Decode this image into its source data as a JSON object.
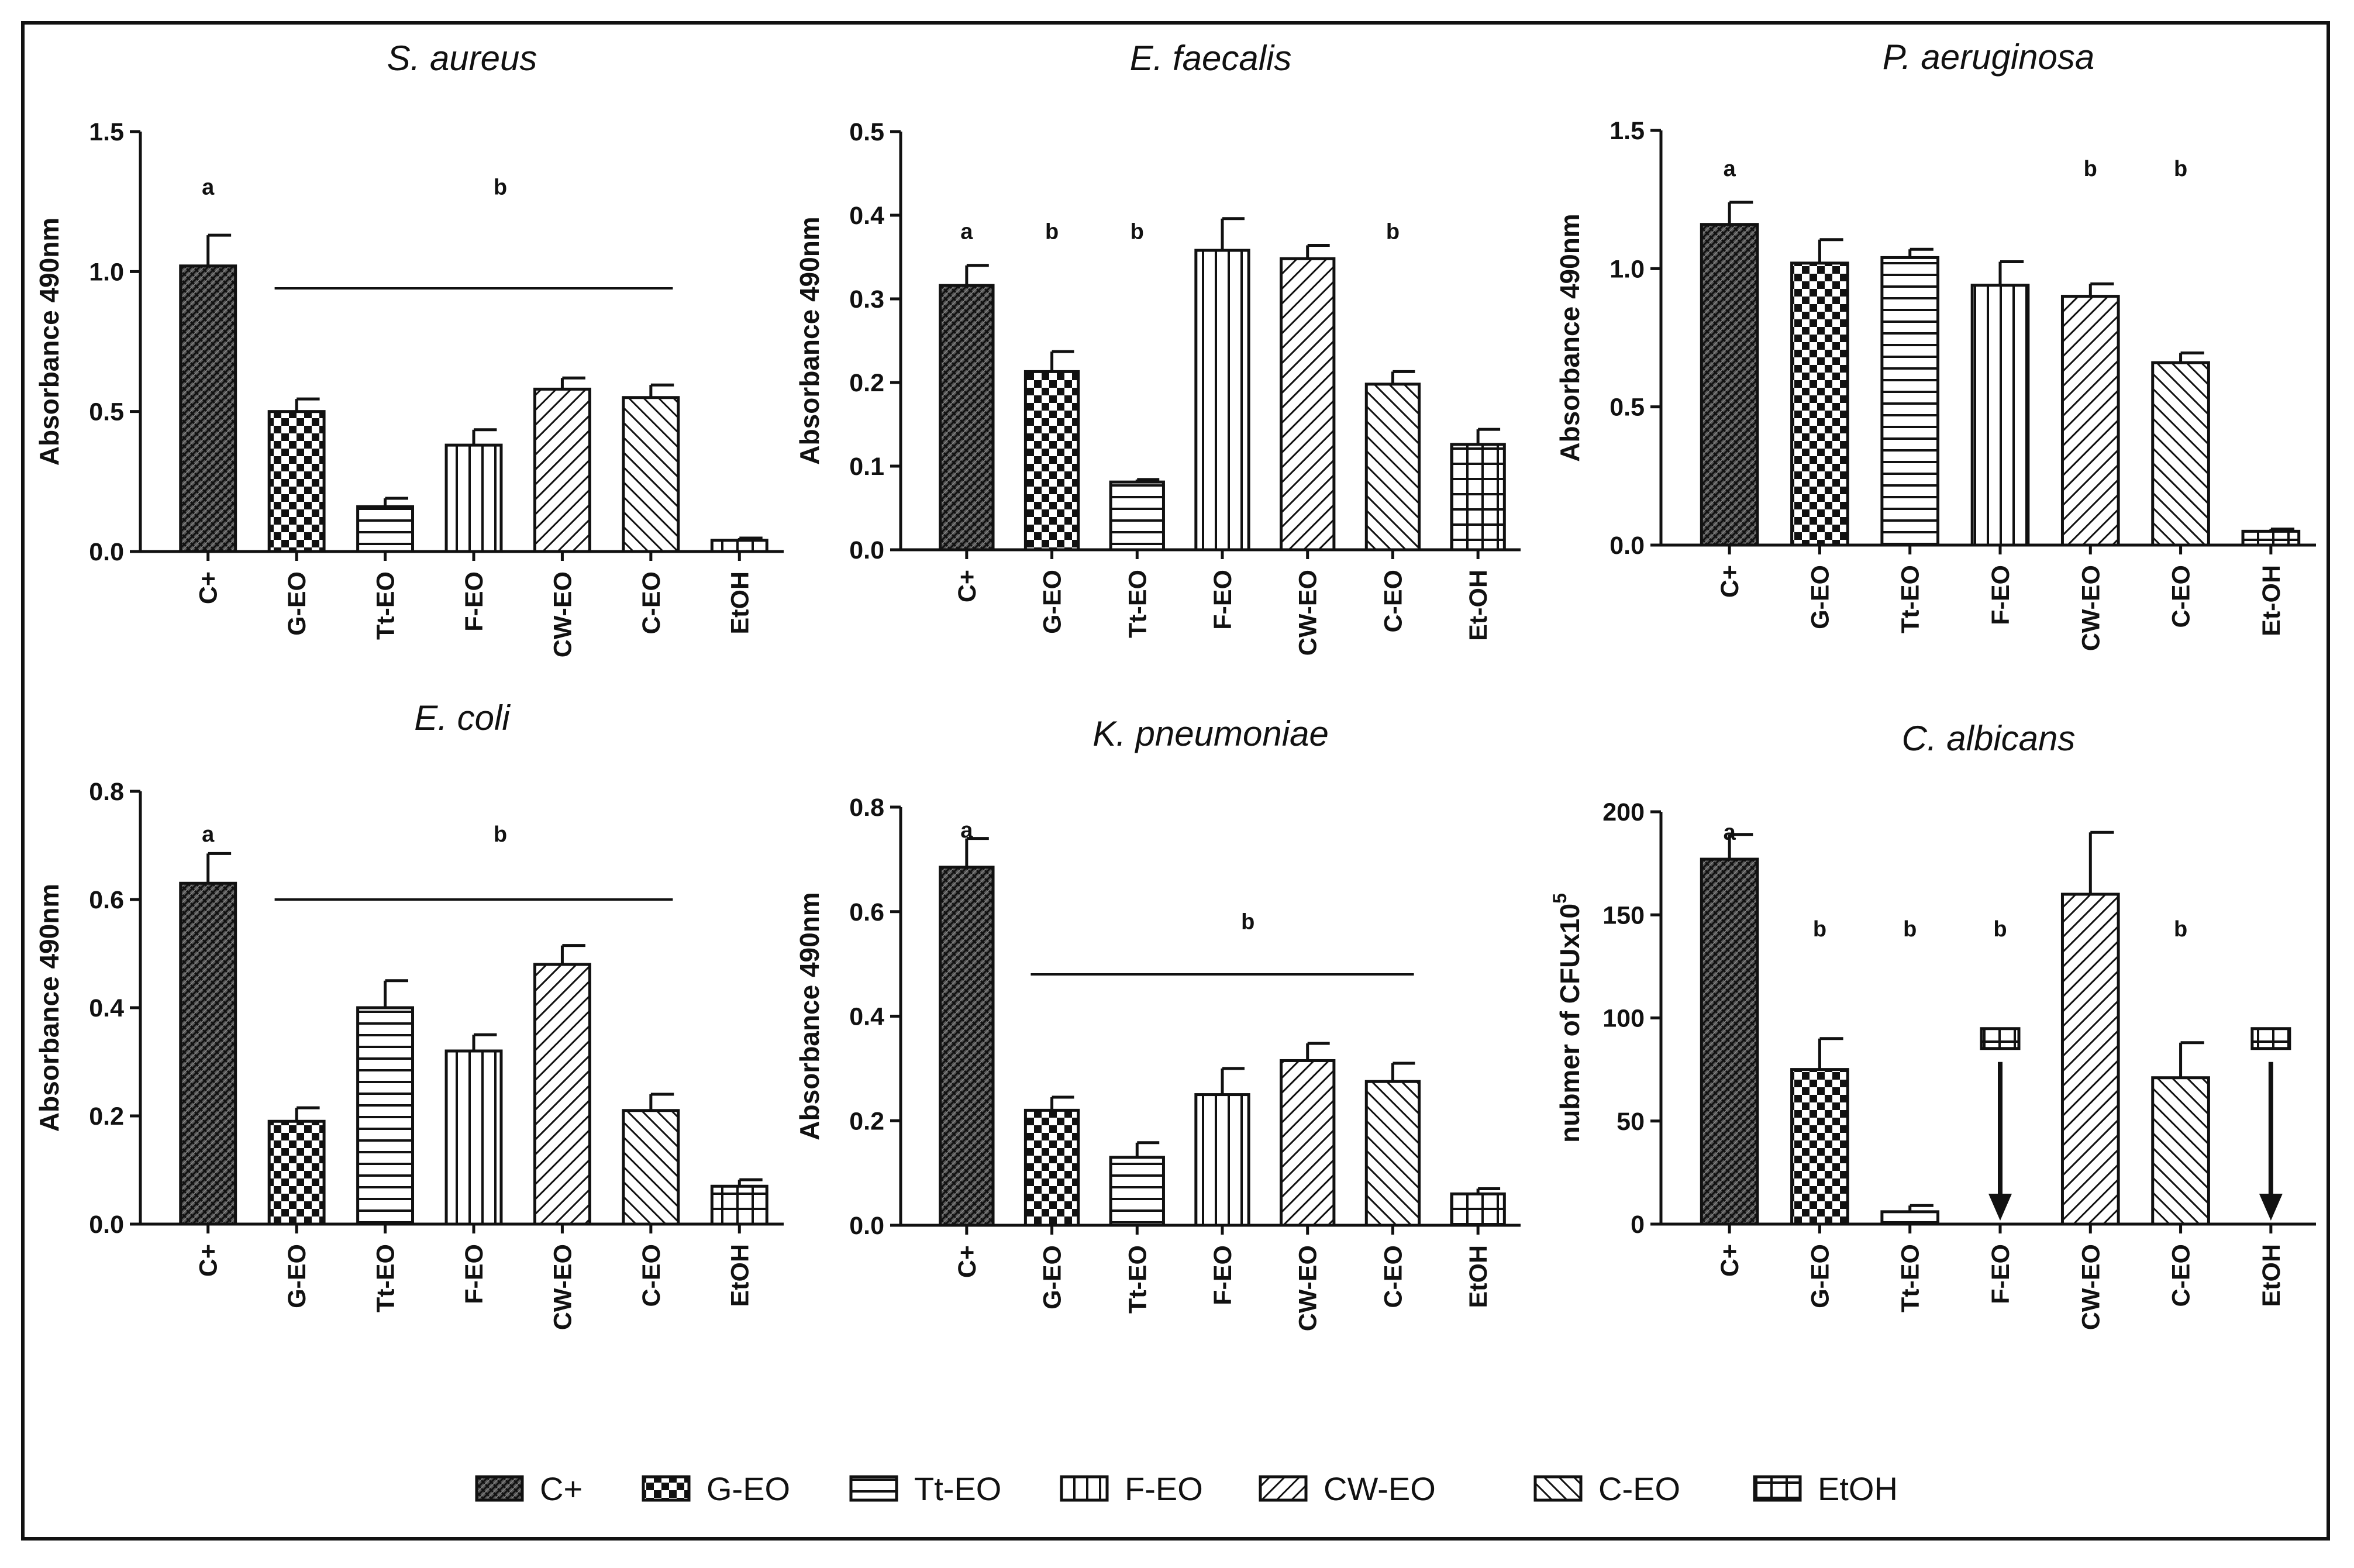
{
  "chart_data": [
    {
      "type": "bar",
      "title": "S. aureus",
      "ylabel": "Absorbance 490nm",
      "ylim": [
        0,
        1.5
      ],
      "yticks": [
        "0.0",
        "0.5",
        "1.0",
        "1.5"
      ],
      "categories": [
        "C+",
        "G-EO",
        "Tt-EO",
        "F-EO",
        "CW-EO",
        "C-EO",
        "EtOH"
      ],
      "values": [
        1.02,
        0.5,
        0.16,
        0.38,
        0.58,
        0.55,
        0.04
      ],
      "errors": [
        0.11,
        0.045,
        0.03,
        0.055,
        0.04,
        0.045,
        0.008
      ],
      "annotations": [
        {
          "label": "a",
          "at": 0,
          "y": 1.3
        },
        {
          "label": "b",
          "at": 3.3,
          "y": 1.3
        }
      ],
      "bracket": {
        "from": 1,
        "to": 5,
        "y": 0.94
      }
    },
    {
      "type": "bar",
      "title": "E. faecalis",
      "ylabel": "Absorbance 490nm",
      "ylim": [
        0,
        0.5
      ],
      "yticks": [
        "0.0",
        "0.1",
        "0.2",
        "0.3",
        "0.4",
        "0.5"
      ],
      "categories": [
        "C+",
        "G-EO",
        "Tt-EO",
        "F-EO",
        "CW-EO",
        "C-EO",
        "Et-OH"
      ],
      "values": [
        0.316,
        0.213,
        0.081,
        0.358,
        0.348,
        0.198,
        0.126
      ],
      "errors": [
        0.024,
        0.024,
        0.003,
        0.038,
        0.016,
        0.015,
        0.018
      ],
      "annotations": [
        {
          "label": "a",
          "at": 0,
          "y": 0.38
        },
        {
          "label": "b",
          "at": 1,
          "y": 0.38
        },
        {
          "label": "b",
          "at": 2,
          "y": 0.38
        },
        {
          "label": "b",
          "at": 5,
          "y": 0.38
        }
      ],
      "bracket": null
    },
    {
      "type": "bar",
      "title": "P. aeruginosa",
      "ylabel": "Absorbance 490nm",
      "ylim": [
        0,
        1.5
      ],
      "yticks": [
        "0.0",
        "0.5",
        "1.0",
        "1.5"
      ],
      "categories": [
        "C+",
        "G-EO",
        "Tt-EO",
        "F-EO",
        "CW-EO",
        "C-EO",
        "Et-OH"
      ],
      "values": [
        1.16,
        1.02,
        1.04,
        0.94,
        0.9,
        0.66,
        0.05
      ],
      "errors": [
        0.08,
        0.085,
        0.03,
        0.085,
        0.045,
        0.035,
        0.008
      ],
      "annotations": [
        {
          "label": "a",
          "at": 0,
          "y": 1.36
        },
        {
          "label": "b",
          "at": 4,
          "y": 1.36
        },
        {
          "label": "b",
          "at": 5,
          "y": 1.36
        }
      ],
      "bracket": null
    },
    {
      "type": "bar",
      "title": "E. coli",
      "ylabel": "Absorbance 490nm",
      "ylim": [
        0,
        0.8
      ],
      "yticks": [
        "0.0",
        "0.2",
        "0.4",
        "0.6",
        "0.8"
      ],
      "categories": [
        "C+",
        "G-EO",
        "Tt-EO",
        "F-EO",
        "CW-EO",
        "C-EO",
        "EtOH"
      ],
      "values": [
        0.63,
        0.19,
        0.4,
        0.32,
        0.48,
        0.21,
        0.07
      ],
      "errors": [
        0.055,
        0.025,
        0.05,
        0.03,
        0.035,
        0.03,
        0.012
      ],
      "annotations": [
        {
          "label": "a",
          "at": 0,
          "y": 0.72
        },
        {
          "label": "b",
          "at": 3.3,
          "y": 0.72
        }
      ],
      "bracket": {
        "from": 1,
        "to": 5,
        "y": 0.6
      }
    },
    {
      "type": "bar",
      "title": "K. pneumoniae",
      "ylabel": "Absorbance 490nm",
      "ylim": [
        0,
        0.8
      ],
      "yticks": [
        "0.0",
        "0.2",
        "0.4",
        "0.6",
        "0.8"
      ],
      "categories": [
        "C+",
        "G-EO",
        "Tt-EO",
        "F-EO",
        "CW-EO",
        "C-EO",
        "EtOH"
      ],
      "values": [
        0.685,
        0.22,
        0.13,
        0.25,
        0.315,
        0.275,
        0.06
      ],
      "errors": [
        0.055,
        0.025,
        0.028,
        0.05,
        0.033,
        0.035,
        0.01
      ],
      "annotations": [
        {
          "label": "a",
          "at": 0,
          "y": 0.755
        },
        {
          "label": "b",
          "at": 3.3,
          "y": 0.58
        }
      ],
      "bracket": {
        "from": 1,
        "to": 5,
        "y": 0.48
      }
    },
    {
      "type": "bar",
      "title": "C. albicans",
      "ylabel": "nubmer of CFUx10",
      "ylabel_superscript": "5",
      "ylim": [
        0,
        200
      ],
      "yticks": [
        "0",
        "50",
        "100",
        "150",
        "200"
      ],
      "categories": [
        "C+",
        "G-EO",
        "Tt-EO",
        "F-EO",
        "CW-EO",
        "C-EO",
        "EtOH"
      ],
      "values": [
        177,
        75,
        6,
        0,
        160,
        71,
        0
      ],
      "errors": [
        12,
        15,
        3,
        0,
        30,
        17,
        0
      ],
      "annotations": [
        {
          "label": "a",
          "at": 0,
          "y": 190
        },
        {
          "label": "b",
          "at": 1,
          "y": 143
        },
        {
          "label": "b",
          "at": 2,
          "y": 143
        },
        {
          "label": "b",
          "at": 3,
          "y": 143
        },
        {
          "label": "b",
          "at": 5,
          "y": 143
        }
      ],
      "zero_markers": [
        {
          "at": 3,
          "y": 90
        },
        {
          "at": 6,
          "y": 90
        }
      ],
      "bracket": null
    }
  ],
  "legend": {
    "placement": "bottom",
    "items": [
      {
        "label": "C+",
        "pattern": "crosshatch-dense"
      },
      {
        "label": "G-EO",
        "pattern": "checker"
      },
      {
        "label": "Tt-EO",
        "pattern": "hlines"
      },
      {
        "label": "F-EO",
        "pattern": "vlines"
      },
      {
        "label": "CW-EO",
        "pattern": "diag-up"
      },
      {
        "label": "C-EO",
        "pattern": "diag-down"
      },
      {
        "label": "EtOH",
        "pattern": "grid"
      }
    ]
  }
}
